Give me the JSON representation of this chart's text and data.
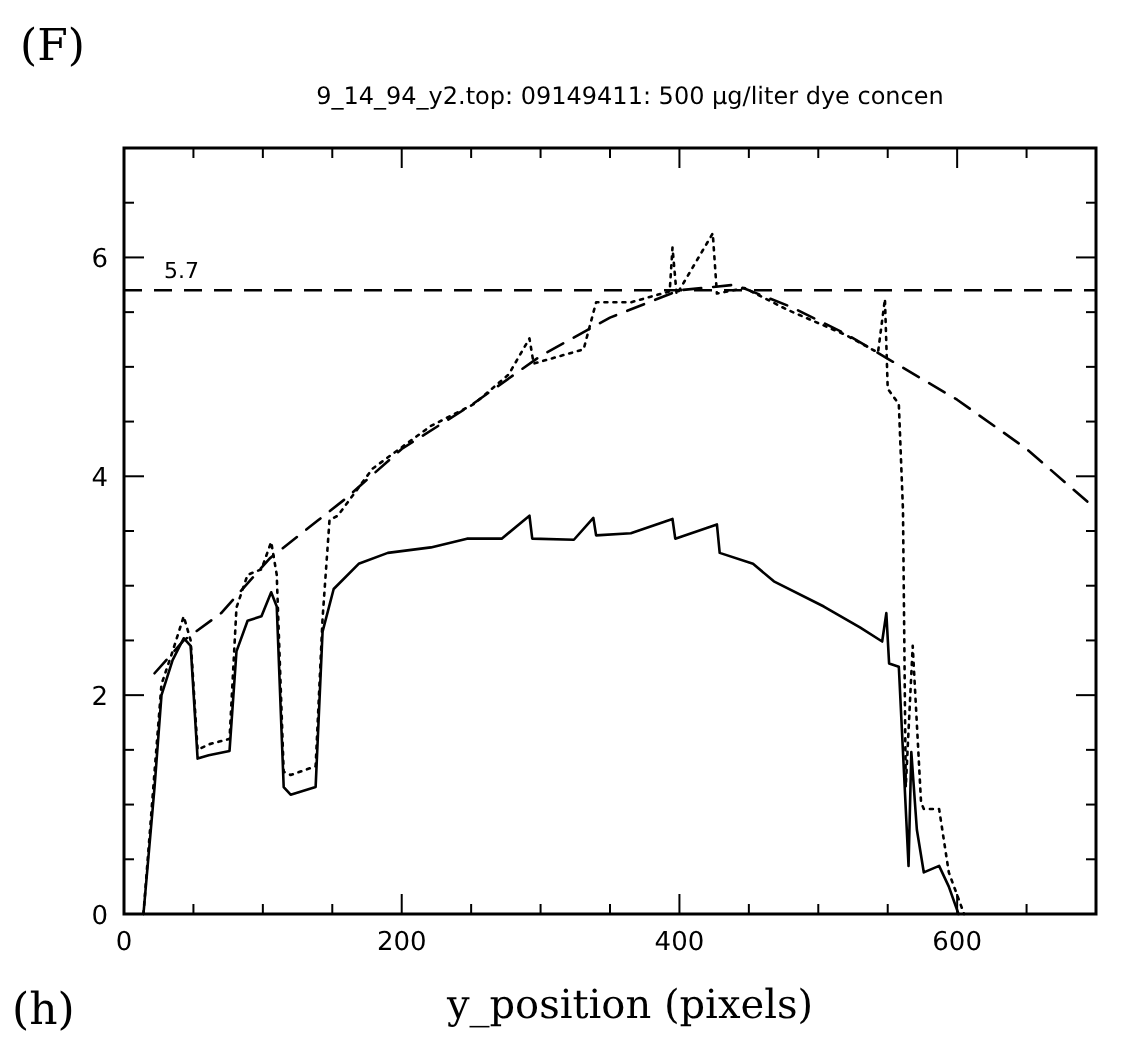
{
  "chart_data": {
    "type": "line",
    "title": "9_14_94_y2.top: 09149411: 500 μg/liter dye concen",
    "xlabel": "y_position (pixels)",
    "annotations": [
      "(F)",
      "(h)"
    ],
    "xlim": [
      0,
      700
    ],
    "ylim": [
      0,
      7
    ],
    "xticks": [
      0,
      {
        "value": 50,
        "label": null
      },
      {
        "value": 100,
        "label": null
      },
      {
        "value": 150,
        "label": null
      },
      200,
      {
        "value": 250,
        "label": null
      },
      {
        "value": 300,
        "label": null
      },
      {
        "value": 350,
        "label": null
      },
      400,
      {
        "value": 450,
        "label": null
      },
      {
        "value": 500,
        "label": null
      },
      {
        "value": 550,
        "label": null
      },
      600,
      {
        "value": 650,
        "label": null
      }
    ],
    "yticks": [
      0,
      {
        "value": 0.5,
        "label": null
      },
      {
        "value": 1,
        "label": null
      },
      {
        "value": 1.5,
        "label": null
      },
      2,
      {
        "value": 2.5,
        "label": null
      },
      {
        "value": 3,
        "label": null
      },
      {
        "value": 3.5,
        "label": null
      },
      4,
      {
        "value": 4.5,
        "label": null
      },
      {
        "value": 5,
        "label": null
      },
      {
        "value": 5.5,
        "label": null
      },
      6,
      {
        "value": 6.5,
        "label": null
      }
    ],
    "grid": false,
    "ref_lines": [
      {
        "axis": "y",
        "value": 5.7,
        "label": "5.7",
        "line_style": "dashed",
        "color": "#000000"
      }
    ],
    "series": [
      {
        "color": "#000000",
        "line_style": "solid",
        "x": [
          14,
          22,
          27,
          35,
          43,
          48,
          53,
          61,
          76,
          81,
          89,
          99,
          106,
          110,
          115,
          120,
          138,
          143,
          151,
          169,
          190,
          221,
          247,
          272,
          292,
          294,
          324,
          338,
          340,
          365,
          395,
          397,
          427,
          429,
          453,
          468,
          504,
          530,
          546,
          549,
          551,
          558,
          562,
          565,
          567,
          571,
          576,
          587,
          594,
          601
        ],
        "values": [
          0,
          1.16,
          2.0,
          2.32,
          2.52,
          2.45,
          1.42,
          1.45,
          1.49,
          2.4,
          2.68,
          2.72,
          2.94,
          2.81,
          1.16,
          1.09,
          1.16,
          2.58,
          2.97,
          3.2,
          3.3,
          3.35,
          3.43,
          3.43,
          3.64,
          3.43,
          3.42,
          3.62,
          3.46,
          3.48,
          3.61,
          3.43,
          3.56,
          3.3,
          3.2,
          3.04,
          2.81,
          2.62,
          2.49,
          2.75,
          2.29,
          2.26,
          1.22,
          0.44,
          1.48,
          0.77,
          0.38,
          0.44,
          0.25,
          0
        ]
      },
      {
        "color": "#000000",
        "line_style": "dotted",
        "x": [
          14,
          22,
          27,
          35,
          43,
          48,
          53,
          61,
          76,
          81,
          89,
          99,
          106,
          110,
          115,
          120,
          138,
          143,
          148,
          154,
          179,
          221,
          252,
          277,
          292,
          295,
          331,
          340,
          365,
          393,
          395,
          398,
          424,
          427,
          447,
          478,
          520,
          543,
          548,
          550,
          558,
          561,
          563,
          568,
          574,
          576,
          587,
          594,
          605
        ],
        "values": [
          0,
          1.3,
          2.1,
          2.4,
          2.72,
          2.5,
          1.5,
          1.55,
          1.6,
          2.8,
          3.1,
          3.15,
          3.4,
          3.1,
          1.3,
          1.27,
          1.35,
          2.7,
          3.6,
          3.64,
          4.07,
          4.46,
          4.66,
          4.93,
          5.26,
          5.03,
          5.16,
          5.59,
          5.59,
          5.69,
          6.09,
          5.66,
          6.22,
          5.67,
          5.72,
          5.52,
          5.29,
          5.13,
          5.62,
          4.8,
          4.66,
          3.69,
          1.16,
          2.45,
          1.02,
          0.96,
          0.96,
          0.38,
          0
        ]
      },
      {
        "color": "#000000",
        "line_style": "dashed",
        "x": [
          22,
          43,
          70,
          105,
          140,
          160,
          200,
          250,
          300,
          350,
          400,
          440,
          480,
          520,
          560,
          600,
          650,
          700
        ],
        "values": [
          2.2,
          2.5,
          2.75,
          3.25,
          3.6,
          3.8,
          4.25,
          4.65,
          5.1,
          5.45,
          5.7,
          5.75,
          5.55,
          5.3,
          5.0,
          4.7,
          4.25,
          3.7
        ]
      }
    ]
  }
}
